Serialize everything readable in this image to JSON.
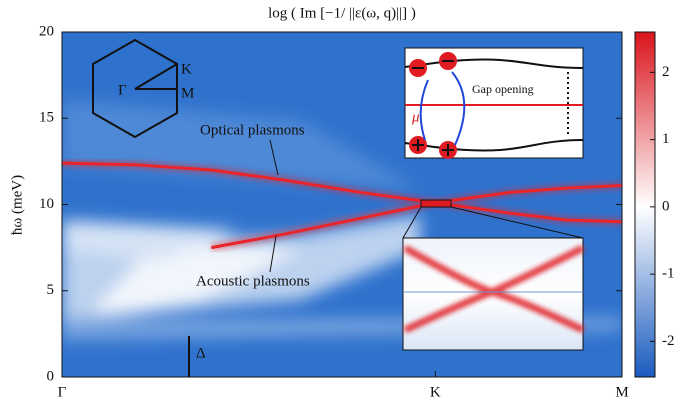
{
  "chart_data": {
    "type": "heatmap",
    "title": "log ( Im [−1/ ||ε(ω, q)||] )",
    "ylabel": "ħω (meV)",
    "xlim": [
      0,
      1.5
    ],
    "xticks": [
      {
        "value": 0,
        "label": "Γ"
      },
      {
        "value": 1,
        "label": "K"
      },
      {
        "value": 1.5,
        "label": "M"
      }
    ],
    "ylim": [
      0,
      20
    ],
    "yticks": [
      0,
      5,
      10,
      15,
      20
    ],
    "clim": [
      -2.53,
      2.6
    ],
    "cticks": [
      2,
      1,
      0,
      -1,
      -2
    ],
    "colormap": [
      "#1a5bbf",
      "#ffffff",
      "#d9141c"
    ],
    "series": [
      {
        "color": "#e8252a",
        "x": [
          0,
          0.2,
          0.4,
          0.6,
          0.8,
          1.0,
          1.2,
          1.35,
          1.5
        ],
        "values": [
          12.4,
          12.3,
          12.0,
          11.4,
          10.7,
          10.1,
          10.7,
          10.95,
          11.1
        ]
      },
      {
        "color": "#e8252a",
        "x": [
          0.4,
          0.6,
          0.8,
          1.0,
          1.2,
          1.35,
          1.5
        ],
        "values": [
          7.5,
          8.3,
          9.2,
          10.1,
          9.5,
          9.1,
          9.0
        ]
      }
    ],
    "annotations": {
      "optical": "Optical plasmons",
      "acoustic": "Acoustic plasmons",
      "gap": "Δ",
      "gap_opening": "Gap opening",
      "mu": "μ",
      "bz_k": "K",
      "bz_gamma": "Γ",
      "bz_m": "M"
    }
  }
}
